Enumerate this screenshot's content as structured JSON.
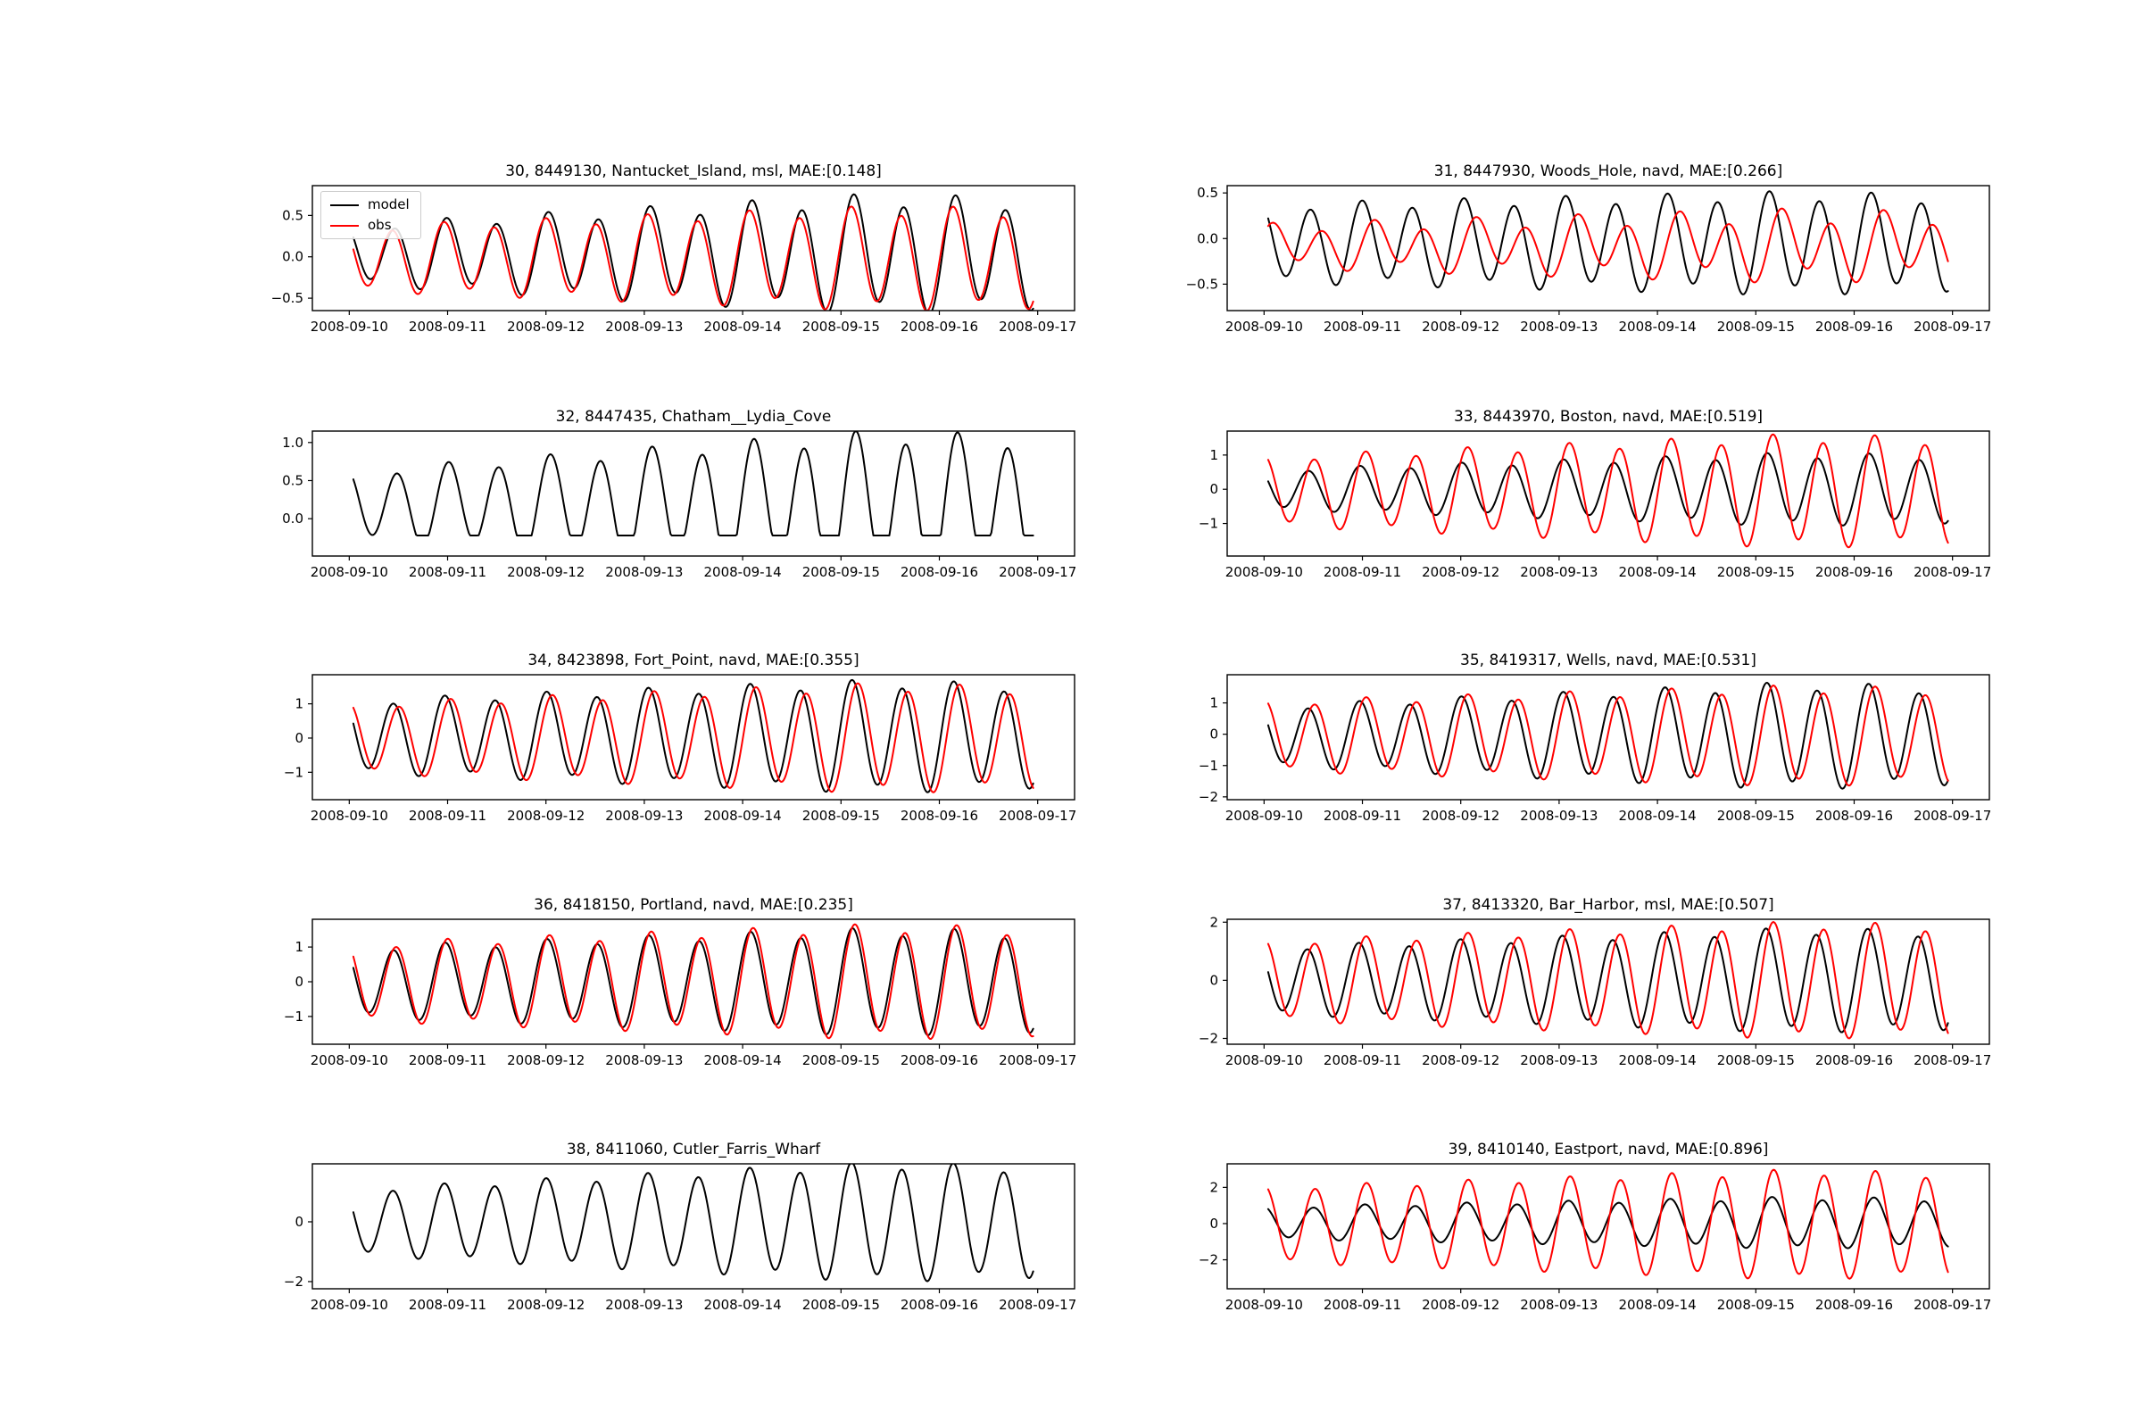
{
  "figure": {
    "background": "#ffffff",
    "kind": "tide model vs observation comparison, 10 stations"
  },
  "chart_data": {
    "type": "line",
    "x_axis": {
      "tick_labels": [
        "2008-09-10",
        "2008-09-11",
        "2008-09-12",
        "2008-09-13",
        "2008-09-14",
        "2008-09-15",
        "2008-09-16",
        "2008-09-17"
      ],
      "tick_hours": [
        0,
        24,
        48,
        72,
        96,
        120,
        144,
        168
      ],
      "xlim_hours": [
        -9,
        177
      ]
    },
    "legend": {
      "position": "upper-left",
      "entries": [
        {
          "label": "model",
          "color": "#000000"
        },
        {
          "label": "obs",
          "color": "#ff0000"
        }
      ]
    },
    "colors": {
      "model": "#000000",
      "obs": "#ff0000",
      "axes": "#000000"
    },
    "panels": [
      {
        "title": "30, 8449130, Nantucket_Island, msl, MAE:[0.148]",
        "index": 30,
        "station_id": "8449130",
        "station_name": "Nantucket_Island",
        "datum": "msl",
        "mae": 0.148,
        "has_legend": true,
        "ylim": [
          -0.65,
          0.86
        ],
        "yticks": [
          0.5,
          0.0,
          -0.5
        ],
        "ytick_labels": [
          "0.5",
          "0.0",
          "−0.5"
        ],
        "series": [
          {
            "name": "model",
            "color": "#000000",
            "mean": 0.03,
            "amp_keyframes": [
              [
                0,
                0.33
              ],
              [
                130,
                0.66
              ],
              [
                168,
                0.6
              ]
            ],
            "period_h": 12.42,
            "phase_h": 4.3,
            "diurnal_frac": 0.18,
            "diurnal_period_h": 24.84,
            "t_start_h": 1,
            "t_end_h": 167
          },
          {
            "name": "obs",
            "color": "#ff0000",
            "mean": -0.02,
            "amp_keyframes": [
              [
                0,
                0.36
              ],
              [
                130,
                0.58
              ],
              [
                168,
                0.55
              ]
            ],
            "period_h": 12.42,
            "phase_h": 4.9,
            "diurnal_frac": 0.15,
            "diurnal_period_h": 24.84,
            "t_start_h": 1,
            "t_end_h": 167
          }
        ]
      },
      {
        "title": "31, 8447930, Woods_Hole, navd, MAE:[0.266]",
        "index": 31,
        "station_id": "8447930",
        "station_name": "Woods_Hole",
        "datum": "navd",
        "mae": 0.266,
        "has_legend": false,
        "ylim": [
          -0.79,
          0.58
        ],
        "yticks": [
          0.5,
          0.0,
          -0.5
        ],
        "ytick_labels": [
          "0.5",
          "0.0",
          "−0.5"
        ],
        "series": [
          {
            "name": "model",
            "color": "#000000",
            "mean": -0.05,
            "amp_keyframes": [
              [
                0,
                0.4
              ],
              [
                130,
                0.52
              ],
              [
                168,
                0.48
              ]
            ],
            "period_h": 12.42,
            "phase_h": 4.1,
            "diurnal_frac": 0.15,
            "diurnal_period_h": 24.84,
            "t_start_h": 1,
            "t_end_h": 167
          },
          {
            "name": "obs",
            "color": "#ff0000",
            "mean": -0.08,
            "amp_keyframes": [
              [
                0,
                0.2
              ],
              [
                130,
                0.33
              ],
              [
                168,
                0.3
              ]
            ],
            "period_h": 12.42,
            "phase_h": 1.2,
            "diurnal_frac": 0.35,
            "diurnal_period_h": 24.84,
            "t_start_h": 1,
            "t_end_h": 167
          }
        ]
      },
      {
        "title": "32, 8447435, Chatham__Lydia_Cove",
        "index": 32,
        "station_id": "8447435",
        "station_name": "Chatham__Lydia_Cove",
        "datum": null,
        "mae": null,
        "has_legend": false,
        "ylim": [
          -0.49,
          1.15
        ],
        "yticks": [
          1.0,
          0.5,
          0.0
        ],
        "ytick_labels": [
          "1.0",
          "0.5",
          "0.0"
        ],
        "series": [
          {
            "name": "model",
            "color": "#000000",
            "mean": 0.18,
            "amp_keyframes": [
              [
                0,
                0.42
              ],
              [
                130,
                0.9
              ],
              [
                168,
                0.82
              ]
            ],
            "period_h": 12.42,
            "phase_h": 3.8,
            "diurnal_frac": 0.15,
            "diurnal_period_h": 24.84,
            "clip_min": -0.22,
            "t_start_h": 1,
            "t_end_h": 167
          }
        ]
      },
      {
        "title": "33, 8443970, Boston, navd, MAE:[0.519]",
        "index": 33,
        "station_id": "8443970",
        "station_name": "Boston",
        "datum": "navd",
        "mae": 0.519,
        "has_legend": false,
        "ylim": [
          -1.95,
          1.7
        ],
        "yticks": [
          1,
          0,
          -1
        ],
        "ytick_labels": [
          "1",
          "0",
          "−1"
        ],
        "series": [
          {
            "name": "model",
            "color": "#000000",
            "mean": 0.0,
            "amp_keyframes": [
              [
                0,
                0.55
              ],
              [
                130,
                1.0
              ],
              [
                168,
                0.92
              ]
            ],
            "period_h": 12.42,
            "phase_h": 4.6,
            "diurnal_frac": 0.12,
            "diurnal_period_h": 24.84,
            "t_start_h": 1,
            "t_end_h": 167
          },
          {
            "name": "obs",
            "color": "#ff0000",
            "mean": -0.05,
            "amp_keyframes": [
              [
                0,
                0.95
              ],
              [
                130,
                1.55
              ],
              [
                168,
                1.45
              ]
            ],
            "period_h": 12.42,
            "phase_h": 3.2,
            "diurnal_frac": 0.12,
            "diurnal_period_h": 24.84,
            "t_start_h": 1,
            "t_end_h": 167
          }
        ]
      },
      {
        "title": "34, 8423898, Fort_Point, navd, MAE:[0.355]",
        "index": 34,
        "station_id": "8423898",
        "station_name": "Fort_Point",
        "datum": "navd",
        "mae": 0.355,
        "has_legend": false,
        "ylim": [
          -1.8,
          1.85
        ],
        "yticks": [
          1,
          0,
          -1
        ],
        "ytick_labels": [
          "1",
          "0",
          "−1"
        ],
        "series": [
          {
            "name": "model",
            "color": "#000000",
            "mean": 0.05,
            "amp_keyframes": [
              [
                0,
                1.0
              ],
              [
                130,
                1.55
              ],
              [
                168,
                1.4
              ]
            ],
            "period_h": 12.42,
            "phase_h": 4.7,
            "diurnal_frac": 0.12,
            "diurnal_period_h": 24.84,
            "t_start_h": 1,
            "t_end_h": 167
          },
          {
            "name": "obs",
            "color": "#ff0000",
            "mean": 0.0,
            "amp_keyframes": [
              [
                0,
                0.95
              ],
              [
                130,
                1.5
              ],
              [
                168,
                1.38
              ]
            ],
            "period_h": 12.42,
            "phase_h": 3.3,
            "diurnal_frac": 0.12,
            "diurnal_period_h": 24.84,
            "t_start_h": 1,
            "t_end_h": 167
          }
        ]
      },
      {
        "title": "35, 8419317, Wells, navd, MAE:[0.531]",
        "index": 35,
        "station_id": "8419317",
        "station_name": "Wells",
        "datum": "navd",
        "mae": 0.531,
        "has_legend": false,
        "ylim": [
          -2.09,
          1.9
        ],
        "yticks": [
          1,
          0,
          -1,
          -2
        ],
        "ytick_labels": [
          "1",
          "0",
          "−1",
          "−2"
        ],
        "series": [
          {
            "name": "model",
            "color": "#000000",
            "mean": -0.05,
            "amp_keyframes": [
              [
                0,
                0.9
              ],
              [
                130,
                1.6
              ],
              [
                168,
                1.45
              ]
            ],
            "period_h": 12.42,
            "phase_h": 4.7,
            "diurnal_frac": 0.12,
            "diurnal_period_h": 24.84,
            "t_start_h": 1,
            "t_end_h": 167
          },
          {
            "name": "obs",
            "color": "#ff0000",
            "mean": -0.05,
            "amp_keyframes": [
              [
                0,
                1.05
              ],
              [
                130,
                1.5
              ],
              [
                168,
                1.4
              ]
            ],
            "period_h": 12.42,
            "phase_h": 3.1,
            "diurnal_frac": 0.12,
            "diurnal_period_h": 24.84,
            "t_start_h": 1,
            "t_end_h": 167
          }
        ]
      },
      {
        "title": "36, 8418150, Portland, navd, MAE:[0.235]",
        "index": 36,
        "station_id": "8418150",
        "station_name": "Portland",
        "datum": "navd",
        "mae": 0.235,
        "has_legend": false,
        "ylim": [
          -1.8,
          1.8
        ],
        "yticks": [
          1,
          0,
          -1
        ],
        "ytick_labels": [
          "1",
          "0",
          "−1"
        ],
        "series": [
          {
            "name": "model",
            "color": "#000000",
            "mean": 0.0,
            "amp_keyframes": [
              [
                0,
                0.95
              ],
              [
                130,
                1.45
              ],
              [
                168,
                1.35
              ]
            ],
            "period_h": 12.42,
            "phase_h": 4.6,
            "diurnal_frac": 0.12,
            "diurnal_period_h": 24.84,
            "t_start_h": 1,
            "t_end_h": 167
          },
          {
            "name": "obs",
            "color": "#ff0000",
            "mean": 0.0,
            "amp_keyframes": [
              [
                0,
                1.05
              ],
              [
                130,
                1.55
              ],
              [
                168,
                1.45
              ]
            ],
            "period_h": 12.42,
            "phase_h": 4.0,
            "diurnal_frac": 0.12,
            "diurnal_period_h": 24.84,
            "t_start_h": 1,
            "t_end_h": 167
          }
        ]
      },
      {
        "title": "37, 8413320, Bar_Harbor, msl, MAE:[0.507]",
        "index": 37,
        "station_id": "8413320",
        "station_name": "Bar_Harbor",
        "datum": "msl",
        "mae": 0.507,
        "has_legend": false,
        "ylim": [
          -2.2,
          2.1
        ],
        "yticks": [
          2,
          0,
          -2
        ],
        "ytick_labels": [
          "2",
          "0",
          "−2"
        ],
        "series": [
          {
            "name": "model",
            "color": "#000000",
            "mean": 0.0,
            "amp_keyframes": [
              [
                0,
                1.1
              ],
              [
                130,
                1.7
              ],
              [
                168,
                1.6
              ]
            ],
            "period_h": 12.42,
            "phase_h": 4.9,
            "diurnal_frac": 0.1,
            "diurnal_period_h": 24.84,
            "t_start_h": 1,
            "t_end_h": 167
          },
          {
            "name": "obs",
            "color": "#ff0000",
            "mean": 0.0,
            "amp_keyframes": [
              [
                0,
                1.3
              ],
              [
                130,
                1.9
              ],
              [
                168,
                1.8
              ]
            ],
            "period_h": 12.42,
            "phase_h": 3.1,
            "diurnal_frac": 0.1,
            "diurnal_period_h": 24.84,
            "t_start_h": 1,
            "t_end_h": 167
          }
        ]
      },
      {
        "title": "38, 8411060, Cutler_Farris_Wharf",
        "index": 38,
        "station_id": "8411060",
        "station_name": "Cutler_Farris_Wharf",
        "datum": null,
        "mae": null,
        "has_legend": false,
        "ylim": [
          -2.24,
          1.94
        ],
        "yticks": [
          0,
          -2
        ],
        "ytick_labels": [
          "0",
          "−2"
        ],
        "series": [
          {
            "name": "model",
            "color": "#000000",
            "mean": 0.0,
            "amp_keyframes": [
              [
                0,
                1.05
              ],
              [
                130,
                1.9
              ],
              [
                168,
                1.75
              ]
            ],
            "period_h": 12.42,
            "phase_h": 4.8,
            "diurnal_frac": 0.1,
            "diurnal_period_h": 24.84,
            "t_start_h": 1,
            "t_end_h": 167
          }
        ]
      },
      {
        "title": "39, 8410140, Eastport, navd, MAE:[0.896]",
        "index": 39,
        "station_id": "8410140",
        "station_name": "Eastport",
        "datum": "navd",
        "mae": 0.896,
        "has_legend": false,
        "ylim": [
          -3.6,
          3.3
        ],
        "yticks": [
          2,
          0,
          -2
        ],
        "ytick_labels": [
          "2",
          "0",
          "−2"
        ],
        "series": [
          {
            "name": "model",
            "color": "#000000",
            "mean": 0.05,
            "amp_keyframes": [
              [
                0,
                0.85
              ],
              [
                130,
                1.35
              ],
              [
                168,
                1.25
              ]
            ],
            "period_h": 12.42,
            "phase_h": 3.4,
            "diurnal_frac": 0.1,
            "diurnal_period_h": 24.84,
            "t_start_h": 1,
            "t_end_h": 167
          },
          {
            "name": "obs",
            "color": "#ff0000",
            "mean": -0.05,
            "amp_keyframes": [
              [
                0,
                2.0
              ],
              [
                130,
                2.9
              ],
              [
                168,
                2.7
              ]
            ],
            "period_h": 12.42,
            "phase_h": 3.0,
            "diurnal_frac": 0.08,
            "diurnal_period_h": 24.84,
            "t_start_h": 1,
            "t_end_h": 167
          }
        ]
      }
    ]
  }
}
